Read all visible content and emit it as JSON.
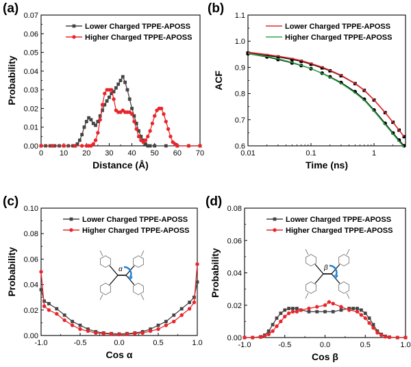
{
  "colors": {
    "lower": "#444444",
    "higher": "#e8262b",
    "fit_higher": "#2ea84a",
    "fit_lower": "#e8262b"
  },
  "chart_data": [
    {
      "panel": "(a)",
      "type": "line",
      "xlabel": "Distance (Å)",
      "ylabel": "Probability",
      "xlim": [
        0,
        70
      ],
      "ylim": [
        0,
        0.07
      ],
      "xticks": [
        "0",
        "10",
        "20",
        "30",
        "40",
        "50",
        "60",
        "70"
      ],
      "yticks": [
        "0.00",
        "0.01",
        "0.02",
        "0.03",
        "0.04",
        "0.05",
        "0.06",
        "0.07"
      ],
      "legend_position": "top-right",
      "series": [
        {
          "name": "Lower Charged TPPE-APOSS",
          "marker": "square",
          "color": "#444444",
          "x": [
            0,
            2,
            4,
            6,
            8,
            10,
            12,
            14,
            15,
            16,
            17,
            18,
            19,
            20,
            21,
            22,
            23,
            24,
            25,
            26,
            27,
            28,
            29,
            30,
            31,
            32,
            33,
            34,
            35,
            36,
            37,
            38,
            39,
            40,
            41,
            42,
            43,
            44,
            45,
            46,
            47,
            48,
            50,
            55,
            60,
            65,
            70
          ],
          "y": [
            0,
            0,
            0,
            0,
            0,
            0,
            0,
            0,
            0,
            0.001,
            0.003,
            0.006,
            0.01,
            0.013,
            0.015,
            0.014,
            0.012,
            0.011,
            0.013,
            0.016,
            0.019,
            0.022,
            0.024,
            0.026,
            0.028,
            0.029,
            0.031,
            0.033,
            0.035,
            0.037,
            0.034,
            0.03,
            0.025,
            0.02,
            0.016,
            0.012,
            0.008,
            0.005,
            0.003,
            0.001,
            0,
            0,
            0,
            0,
            0,
            0,
            0
          ]
        },
        {
          "name": "Higher Charged TPPE-APOSS",
          "marker": "circle",
          "color": "#e8262b",
          "x": [
            0,
            5,
            10,
            15,
            18,
            20,
            21,
            22,
            23,
            24,
            25,
            26,
            27,
            28,
            29,
            30,
            31,
            32,
            33,
            34,
            35,
            36,
            37,
            38,
            39,
            40,
            41,
            42,
            43,
            44,
            45,
            46,
            47,
            48,
            49,
            50,
            51,
            52,
            53,
            54,
            55,
            56,
            57,
            58,
            59,
            60,
            65,
            70
          ],
          "y": [
            0,
            0,
            0,
            0,
            0,
            0,
            0,
            0,
            0.001,
            0.003,
            0.007,
            0.014,
            0.022,
            0.028,
            0.03,
            0.03,
            0.03,
            0.025,
            0.019,
            0.018,
            0.018,
            0.019,
            0.018,
            0.018,
            0.018,
            0.017,
            0.013,
            0.009,
            0.005,
            0.003,
            0.002,
            0.003,
            0.005,
            0.008,
            0.012,
            0.016,
            0.019,
            0.02,
            0.02,
            0.017,
            0.013,
            0.009,
            0.005,
            0.002,
            0.001,
            0,
            0,
            0
          ]
        }
      ]
    },
    {
      "panel": "(b)",
      "type": "line",
      "xscale": "log",
      "xlabel": "Time (ns)",
      "ylabel": "ACF",
      "xlim": [
        0.01,
        3.16
      ],
      "ylim": [
        0.6,
        1.1
      ],
      "xticks": [
        "0.01",
        "0.1",
        "1"
      ],
      "yticks": [
        "0.6",
        "0.7",
        "0.8",
        "0.9",
        "1.0",
        "1.1"
      ],
      "legend_position": "top-right",
      "legend": [
        "Lower Charged TPPE-APOSS",
        "Higher Charged TPPE-APOSS"
      ],
      "series": [
        {
          "name": "Lower Charged TPPE-APOSS (data)",
          "marker": "square",
          "color": "#000000",
          "x": [
            0.01,
            0.02,
            0.03,
            0.05,
            0.07,
            0.1,
            0.15,
            0.2,
            0.3,
            0.5,
            0.7,
            1,
            1.5,
            2,
            2.5,
            3
          ],
          "y": [
            0.955,
            0.945,
            0.94,
            0.93,
            0.923,
            0.912,
            0.898,
            0.887,
            0.868,
            0.838,
            0.812,
            0.775,
            0.727,
            0.69,
            0.66,
            0.635
          ]
        },
        {
          "name": "Higher Charged TPPE-APOSS (data)",
          "marker": "circle",
          "color": "#000000",
          "x": [
            0.01,
            0.02,
            0.03,
            0.05,
            0.07,
            0.1,
            0.15,
            0.2,
            0.3,
            0.5,
            0.7,
            1,
            1.5,
            2,
            2.5,
            3
          ],
          "y": [
            0.952,
            0.94,
            0.93,
            0.917,
            0.907,
            0.895,
            0.878,
            0.864,
            0.842,
            0.807,
            0.778,
            0.737,
            0.686,
            0.649,
            0.622,
            0.6
          ]
        },
        {
          "name": "Lower Charged TPPE-APOSS",
          "marker": "none",
          "color": "#e8262b",
          "x": [
            0.01,
            0.02,
            0.03,
            0.05,
            0.07,
            0.1,
            0.15,
            0.2,
            0.3,
            0.5,
            0.7,
            1,
            1.5,
            2,
            2.5,
            3
          ],
          "y": [
            0.958,
            0.949,
            0.943,
            0.934,
            0.926,
            0.915,
            0.901,
            0.889,
            0.87,
            0.839,
            0.813,
            0.776,
            0.728,
            0.69,
            0.66,
            0.635
          ]
        },
        {
          "name": "Higher Charged TPPE-APOSS",
          "marker": "none",
          "color": "#2ea84a",
          "x": [
            0.01,
            0.02,
            0.03,
            0.05,
            0.07,
            0.1,
            0.15,
            0.2,
            0.3,
            0.5,
            0.7,
            1,
            1.5,
            2,
            2.5,
            3
          ],
          "y": [
            0.953,
            0.942,
            0.933,
            0.919,
            0.908,
            0.895,
            0.877,
            0.862,
            0.839,
            0.803,
            0.774,
            0.733,
            0.682,
            0.645,
            0.617,
            0.595
          ]
        }
      ]
    },
    {
      "panel": "(c)",
      "type": "line",
      "xlabel": "Cos α",
      "ylabel": "Probability",
      "xlim": [
        -1.0,
        1.0
      ],
      "ylim": [
        0,
        0.1
      ],
      "xticks": [
        "-1.0",
        "-0.5",
        "0.0",
        "0.5",
        "1.0"
      ],
      "yticks": [
        "0.00",
        "0.02",
        "0.04",
        "0.06",
        "0.08",
        "0.10"
      ],
      "legend_position": "top-right",
      "series": [
        {
          "name": "Lower Charged TPPE-APOSS",
          "marker": "square",
          "color": "#444444",
          "x": [
            -1.0,
            -0.96,
            -0.9,
            -0.8,
            -0.7,
            -0.6,
            -0.5,
            -0.4,
            -0.3,
            -0.2,
            -0.1,
            0,
            0.1,
            0.2,
            0.3,
            0.4,
            0.5,
            0.6,
            0.7,
            0.8,
            0.9,
            0.96,
            1.0
          ],
          "y": [
            0.036,
            0.027,
            0.025,
            0.021,
            0.016,
            0.011,
            0.008,
            0.005,
            0.003,
            0.002,
            0.0015,
            0.0012,
            0.0015,
            0.002,
            0.003,
            0.005,
            0.008,
            0.011,
            0.016,
            0.021,
            0.026,
            0.03,
            0.042
          ]
        },
        {
          "name": "Higher Charged TPPE-APOSS",
          "marker": "circle",
          "color": "#e8262b",
          "x": [
            -1.0,
            -0.96,
            -0.9,
            -0.8,
            -0.7,
            -0.6,
            -0.5,
            -0.4,
            -0.3,
            -0.2,
            -0.1,
            0,
            0.1,
            0.2,
            0.3,
            0.4,
            0.5,
            0.6,
            0.7,
            0.8,
            0.9,
            0.96,
            1.0
          ],
          "y": [
            0.05,
            0.023,
            0.02,
            0.017,
            0.012,
            0.008,
            0.005,
            0.0035,
            0.002,
            0.0015,
            0.001,
            0.0008,
            0.001,
            0.0015,
            0.002,
            0.0035,
            0.005,
            0.008,
            0.011,
            0.016,
            0.021,
            0.026,
            0.056
          ]
        }
      ]
    },
    {
      "panel": "(d)",
      "type": "line",
      "xlabel": "Cos β",
      "ylabel": "Probability",
      "xlim": [
        -1.0,
        1.0
      ],
      "ylim": [
        0,
        0.08
      ],
      "xticks": [
        "-1.0",
        "-0.5",
        "0.0",
        "0.5",
        "1.0"
      ],
      "yticks": [
        "0.00",
        "0.02",
        "0.04",
        "0.06",
        "0.08"
      ],
      "legend_position": "top-right",
      "series": [
        {
          "name": "Lower Charged TPPE-APOSS",
          "marker": "square",
          "color": "#444444",
          "x": [
            -1.0,
            -0.9,
            -0.8,
            -0.75,
            -0.7,
            -0.65,
            -0.6,
            -0.55,
            -0.5,
            -0.45,
            -0.4,
            -0.35,
            -0.3,
            -0.2,
            -0.1,
            0,
            0.1,
            0.2,
            0.3,
            0.35,
            0.4,
            0.45,
            0.5,
            0.55,
            0.6,
            0.65,
            0.7,
            0.75,
            0.8,
            0.9,
            1.0
          ],
          "y": [
            0,
            0,
            0.0005,
            0.0015,
            0.004,
            0.008,
            0.012,
            0.015,
            0.017,
            0.018,
            0.018,
            0.018,
            0.017,
            0.016,
            0.016,
            0.016,
            0.016,
            0.017,
            0.018,
            0.018,
            0.018,
            0.017,
            0.015,
            0.012,
            0.008,
            0.004,
            0.002,
            0.0008,
            0.0003,
            0,
            0
          ]
        },
        {
          "name": "Higher Charged TPPE-APOSS",
          "marker": "circle",
          "color": "#e8262b",
          "x": [
            -1.0,
            -0.9,
            -0.8,
            -0.75,
            -0.7,
            -0.65,
            -0.6,
            -0.55,
            -0.5,
            -0.45,
            -0.4,
            -0.35,
            -0.3,
            -0.2,
            -0.1,
            0,
            0.05,
            0.1,
            0.2,
            0.3,
            0.4,
            0.45,
            0.5,
            0.55,
            0.6,
            0.65,
            0.7,
            0.75,
            0.8,
            0.9,
            1.0
          ],
          "y": [
            0,
            0,
            0.0003,
            0.001,
            0.002,
            0.004,
            0.007,
            0.01,
            0.013,
            0.015,
            0.016,
            0.016,
            0.017,
            0.018,
            0.019,
            0.02,
            0.022,
            0.021,
            0.019,
            0.017,
            0.016,
            0.014,
            0.012,
            0.009,
            0.006,
            0.003,
            0.0015,
            0.0005,
            0.0002,
            0,
            0
          ]
        }
      ]
    }
  ]
}
